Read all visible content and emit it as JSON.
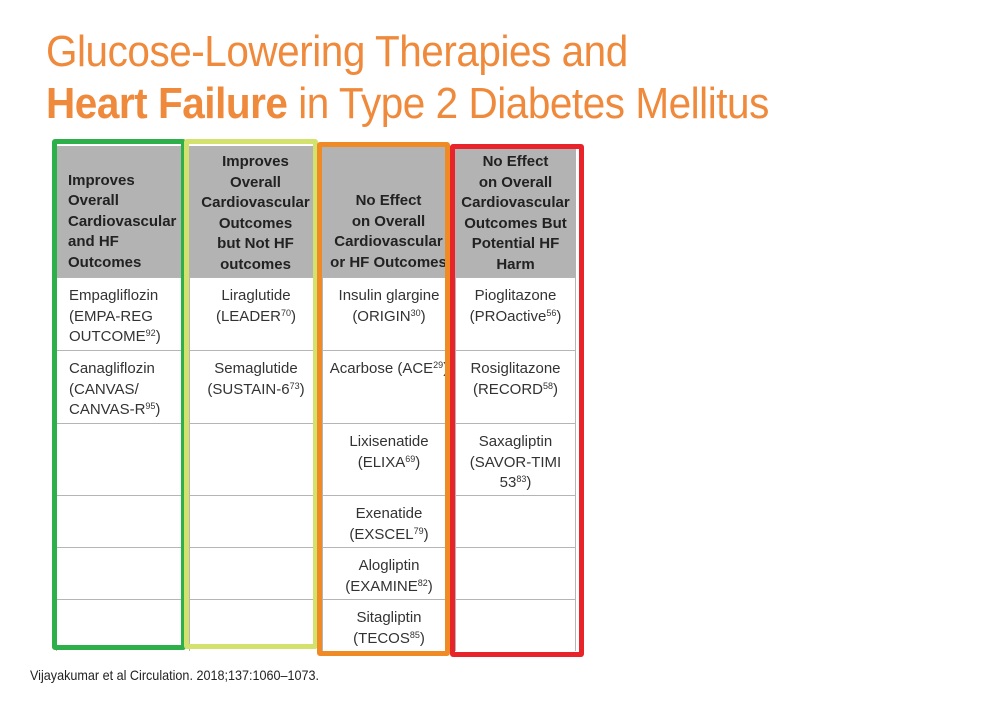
{
  "title": {
    "line1": "Glucose-Lowering Therapies and",
    "line2_bold": "Heart Failure",
    "line2_rest": " in Type 2 Diabetes Mellitus"
  },
  "columns": [
    {
      "header": [
        "Improves",
        "Overall",
        "Cardiovascular",
        "and HF",
        "Outcomes"
      ],
      "frame_color": "#2db04a",
      "cells": [
        {
          "lines": [
            "Empagliflozin",
            "(EMPA-REG",
            "OUTCOME"
          ],
          "ref": "92",
          "close": ")"
        },
        {
          "lines": [
            "Canagliflozin",
            "(CANVAS/",
            "CANVAS-R"
          ],
          "ref": "95",
          "close": ")"
        },
        {
          "lines": []
        },
        {
          "lines": []
        },
        {
          "lines": []
        },
        {
          "lines": []
        }
      ]
    },
    {
      "header": [
        "Improves",
        "Overall",
        "Cardiovascular",
        "Outcomes",
        "but Not HF",
        "outcomes"
      ],
      "frame_color": "#d3e26c",
      "cells": [
        {
          "lines": [
            "Liraglutide",
            "(LEADER"
          ],
          "ref": "70",
          "close": ")"
        },
        {
          "lines": [
            "Semaglutide",
            "(SUSTAIN-6"
          ],
          "ref": "73",
          "close": ")"
        },
        {
          "lines": []
        },
        {
          "lines": []
        },
        {
          "lines": []
        },
        {
          "lines": []
        }
      ]
    },
    {
      "header": [
        "No Effect",
        "on Overall",
        "Cardiovascular",
        "or HF Outcomes"
      ],
      "frame_color": "#f08a24",
      "cells": [
        {
          "lines": [
            "Insulin glargine",
            "(ORIGIN"
          ],
          "ref": "30",
          "close": ")"
        },
        {
          "lines": [
            "Acarbose (ACE"
          ],
          "ref": "29",
          "close": ")"
        },
        {
          "lines": [
            "Lixisenatide",
            "(ELIXA"
          ],
          "ref": "69",
          "close": ")"
        },
        {
          "lines": [
            "Exenatide",
            "(EXSCEL"
          ],
          "ref": "79",
          "close": ")"
        },
        {
          "lines": [
            "Alogliptin",
            "(EXAMINE"
          ],
          "ref": "82",
          "close": ")"
        },
        {
          "lines": [
            "Sitagliptin",
            "(TECOS"
          ],
          "ref": "85",
          "close": ")"
        }
      ]
    },
    {
      "header": [
        "No Effect",
        "on Overall",
        "Cardiovascular",
        "Outcomes But",
        "Potential HF",
        "Harm"
      ],
      "frame_color": "#e8232a",
      "cells": [
        {
          "lines": [
            "Pioglitazone",
            "(PROactive"
          ],
          "ref": "56",
          "close": ")"
        },
        {
          "lines": [
            "Rosiglitazone",
            "(RECORD"
          ],
          "ref": "58",
          "close": ")"
        },
        {
          "lines": [
            "Saxagliptin",
            "(SAVOR-TIMI",
            "53"
          ],
          "ref": "83",
          "close": ")"
        },
        {
          "lines": []
        },
        {
          "lines": []
        },
        {
          "lines": []
        }
      ]
    }
  ],
  "source": "Vijayakumar et al Circulation. 2018;137:1060–1073."
}
